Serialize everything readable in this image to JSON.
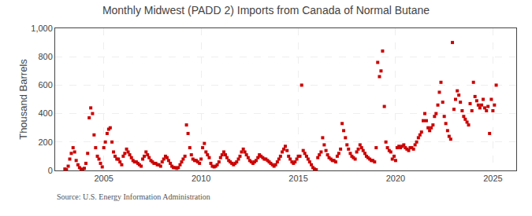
{
  "chart_data": {
    "type": "scatter",
    "title": "Monthly Midwest (PADD 2) Imports from Canada of Normal Butane",
    "y_label": "Thousand Barrels",
    "annotations": [
      "Source: U.S. Energy Information Administration"
    ],
    "color": "#cc0000",
    "marker": "square",
    "grid": true,
    "xlim": [
      2002.5,
      2026.2
    ],
    "ylim": [
      0,
      1000
    ],
    "xticks": [
      2005,
      2010,
      2015,
      2020,
      2025
    ],
    "yticks": [
      0,
      200,
      400,
      600,
      800,
      {
        "value": 1000,
        "label": "1,000"
      }
    ],
    "x": [
      2003.0,
      2003.08,
      2003.17,
      2003.25,
      2003.33,
      2003.42,
      2003.5,
      2003.58,
      2003.67,
      2003.75,
      2003.83,
      2003.92,
      2004.0,
      2004.08,
      2004.17,
      2004.25,
      2004.33,
      2004.42,
      2004.5,
      2004.58,
      2004.67,
      2004.75,
      2004.83,
      2004.92,
      2005.0,
      2005.08,
      2005.17,
      2005.25,
      2005.33,
      2005.42,
      2005.5,
      2005.58,
      2005.67,
      2005.75,
      2005.83,
      2005.92,
      2006.0,
      2006.08,
      2006.17,
      2006.25,
      2006.33,
      2006.42,
      2006.5,
      2006.58,
      2006.67,
      2006.75,
      2006.83,
      2006.92,
      2007.0,
      2007.08,
      2007.17,
      2007.25,
      2007.33,
      2007.42,
      2007.5,
      2007.58,
      2007.67,
      2007.75,
      2007.83,
      2007.92,
      2008.0,
      2008.08,
      2008.17,
      2008.25,
      2008.33,
      2008.42,
      2008.5,
      2008.58,
      2008.67,
      2008.75,
      2008.83,
      2008.92,
      2009.0,
      2009.08,
      2009.17,
      2009.25,
      2009.33,
      2009.42,
      2009.5,
      2009.58,
      2009.67,
      2009.75,
      2009.83,
      2009.92,
      2010.0,
      2010.08,
      2010.17,
      2010.25,
      2010.33,
      2010.42,
      2010.5,
      2010.58,
      2010.67,
      2010.75,
      2010.83,
      2010.92,
      2011.0,
      2011.08,
      2011.17,
      2011.25,
      2011.33,
      2011.42,
      2011.5,
      2011.58,
      2011.67,
      2011.75,
      2011.83,
      2011.92,
      2012.0,
      2012.08,
      2012.17,
      2012.25,
      2012.33,
      2012.42,
      2012.5,
      2012.58,
      2012.67,
      2012.75,
      2012.83,
      2012.92,
      2013.0,
      2013.08,
      2013.17,
      2013.25,
      2013.33,
      2013.42,
      2013.5,
      2013.58,
      2013.67,
      2013.75,
      2013.83,
      2013.92,
      2014.0,
      2014.08,
      2014.17,
      2014.25,
      2014.33,
      2014.42,
      2014.5,
      2014.58,
      2014.67,
      2014.75,
      2014.83,
      2014.92,
      2015.0,
      2015.08,
      2015.17,
      2015.25,
      2015.33,
      2015.42,
      2015.5,
      2015.58,
      2015.67,
      2015.75,
      2015.83,
      2015.92,
      2016.0,
      2016.08,
      2016.17,
      2016.25,
      2016.33,
      2016.42,
      2016.5,
      2016.58,
      2016.67,
      2016.75,
      2016.83,
      2016.92,
      2017.0,
      2017.08,
      2017.17,
      2017.25,
      2017.33,
      2017.42,
      2017.5,
      2017.58,
      2017.67,
      2017.75,
      2017.83,
      2017.92,
      2018.0,
      2018.08,
      2018.17,
      2018.25,
      2018.33,
      2018.42,
      2018.5,
      2018.58,
      2018.67,
      2018.75,
      2018.83,
      2018.92,
      2019.0,
      2019.08,
      2019.17,
      2019.25,
      2019.33,
      2019.42,
      2019.5,
      2019.58,
      2019.67,
      2019.75,
      2019.83,
      2019.92,
      2020.0,
      2020.08,
      2020.17,
      2020.25,
      2020.33,
      2020.42,
      2020.5,
      2020.58,
      2020.67,
      2020.75,
      2020.83,
      2020.92,
      2021.0,
      2021.08,
      2021.17,
      2021.25,
      2021.33,
      2021.42,
      2021.5,
      2021.58,
      2021.67,
      2021.75,
      2021.83,
      2021.92,
      2022.0,
      2022.08,
      2022.17,
      2022.25,
      2022.33,
      2022.42,
      2022.5,
      2022.58,
      2022.67,
      2022.75,
      2022.83,
      2022.92,
      2023.0,
      2023.08,
      2023.17,
      2023.25,
      2023.33,
      2023.42,
      2023.5,
      2023.58,
      2023.67,
      2023.75,
      2023.83,
      2023.92,
      2024.0,
      2024.08,
      2024.17,
      2024.25,
      2024.33,
      2024.42,
      2024.5,
      2024.58,
      2024.67,
      2024.75,
      2024.83,
      2024.92,
      2025.0,
      2025.08,
      2025.17
    ],
    "values": [
      10,
      5,
      30,
      80,
      120,
      160,
      130,
      70,
      40,
      20,
      10,
      5,
      15,
      50,
      120,
      370,
      440,
      400,
      250,
      160,
      100,
      80,
      50,
      25,
      160,
      200,
      260,
      290,
      300,
      200,
      130,
      100,
      80,
      80,
      60,
      40,
      100,
      120,
      150,
      130,
      110,
      90,
      70,
      60,
      60,
      50,
      40,
      30,
      80,
      100,
      130,
      110,
      90,
      70,
      60,
      50,
      50,
      40,
      40,
      30,
      60,
      80,
      100,
      90,
      70,
      50,
      30,
      20,
      20,
      15,
      20,
      40,
      60,
      80,
      100,
      320,
      260,
      160,
      110,
      80,
      70,
      70,
      60,
      50,
      80,
      160,
      190,
      130,
      110,
      90,
      50,
      30,
      25,
      30,
      40,
      60,
      90,
      110,
      130,
      110,
      90,
      70,
      60,
      50,
      40,
      50,
      60,
      80,
      100,
      130,
      150,
      130,
      110,
      90,
      70,
      60,
      50,
      60,
      70,
      90,
      110,
      100,
      90,
      80,
      80,
      70,
      60,
      50,
      40,
      30,
      40,
      60,
      80,
      100,
      130,
      150,
      170,
      140,
      100,
      80,
      60,
      50,
      60,
      80,
      100,
      100,
      600,
      140,
      120,
      100,
      80,
      60,
      40,
      20,
      10,
      5,
      90,
      110,
      130,
      230,
      180,
      140,
      110,
      90,
      80,
      70,
      70,
      60,
      100,
      120,
      150,
      330,
      280,
      230,
      180,
      150,
      120,
      100,
      90,
      80,
      130,
      150,
      180,
      160,
      140,
      120,
      100,
      90,
      80,
      70,
      70,
      60,
      160,
      760,
      660,
      700,
      840,
      450,
      200,
      160,
      140,
      130,
      80,
      100,
      70,
      160,
      170,
      160,
      170,
      180,
      160,
      150,
      140,
      160,
      160,
      150,
      180,
      200,
      230,
      250,
      270,
      350,
      400,
      350,
      300,
      280,
      300,
      320,
      380,
      400,
      460,
      550,
      620,
      480,
      380,
      330,
      280,
      240,
      220,
      900,
      430,
      500,
      560,
      530,
      480,
      420,
      380,
      360,
      340,
      320,
      470,
      420,
      620,
      520,
      490,
      460,
      440,
      460,
      500,
      440,
      420,
      450,
      260,
      500,
      420,
      460,
      600
    ]
  }
}
